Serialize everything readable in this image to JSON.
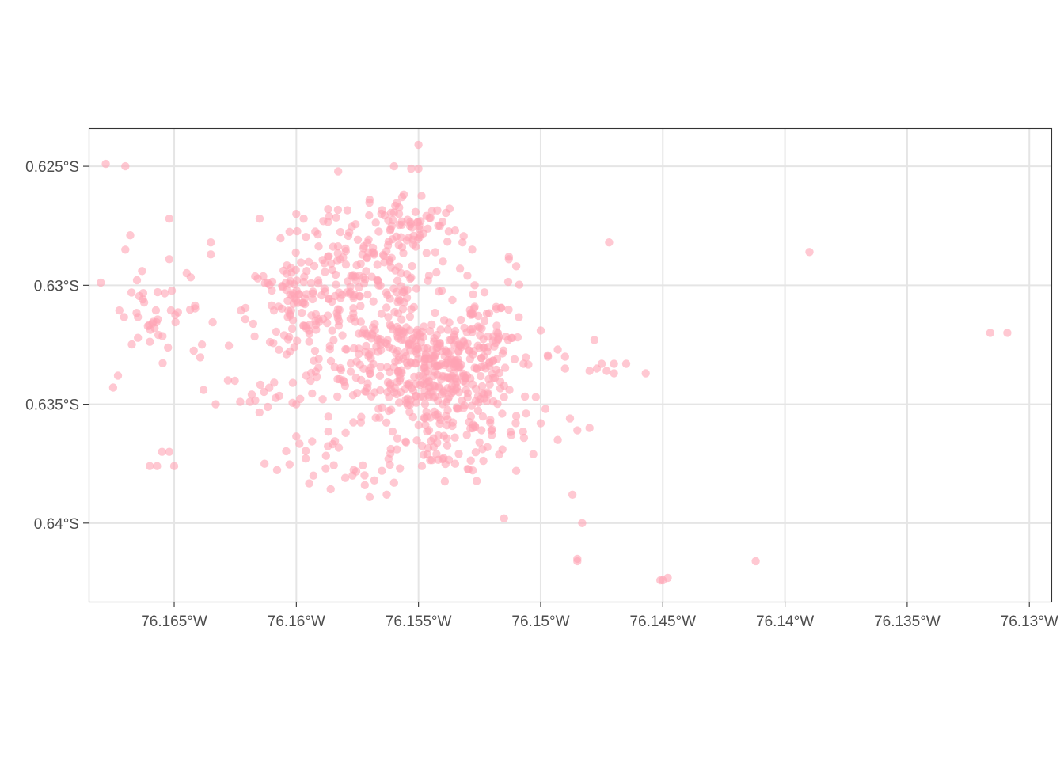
{
  "chart_data": {
    "type": "scatter",
    "title": "",
    "xlabel": "",
    "ylabel": "",
    "grid": true,
    "legend": "none",
    "point_color": "#ffa4b4",
    "point_opacity": 0.6,
    "grid_color": "#e5e5e5",
    "axis_color": "#333333",
    "xlim": [
      -76.1685,
      -76.1291
    ],
    "ylim": [
      -0.6433,
      -0.6234
    ],
    "x_ticks": [
      -76.165,
      -76.16,
      -76.155,
      -76.15,
      -76.145,
      -76.14,
      -76.135,
      -76.13
    ],
    "x_tick_labels": [
      "76.165°W",
      "76.16°W",
      "76.155°W",
      "76.15°W",
      "76.145°W",
      "76.14°W",
      "76.135°W",
      "76.13°W"
    ],
    "y_ticks": [
      -0.625,
      -0.63,
      -0.635,
      -0.64
    ],
    "y_tick_labels": [
      "0.625°S",
      "0.63°S",
      "0.635°S",
      "0.64°S"
    ],
    "clusters": [
      {
        "cx": -76.1555,
        "cy": -0.633,
        "sx": 0.0018,
        "sy": 0.0012,
        "n": 260
      },
      {
        "cx": -76.1575,
        "cy": -0.6298,
        "sx": 0.0018,
        "sy": 0.0014,
        "n": 170
      },
      {
        "cx": -76.1535,
        "cy": -0.6335,
        "sx": 0.0012,
        "sy": 0.0007,
        "n": 130
      },
      {
        "cx": -76.16,
        "cy": -0.631,
        "sx": 0.001,
        "sy": 0.0012,
        "n": 80
      },
      {
        "cx": -76.1555,
        "cy": -0.6275,
        "sx": 0.0011,
        "sy": 0.0007,
        "n": 60
      },
      {
        "cx": -76.1545,
        "cy": -0.6365,
        "sx": 0.0016,
        "sy": 0.0009,
        "n": 80
      },
      {
        "cx": -76.1535,
        "cy": -0.635,
        "sx": 0.001,
        "sy": 0.0006,
        "n": 50
      },
      {
        "cx": -76.152,
        "cy": -0.632,
        "sx": 0.0008,
        "sy": 0.001,
        "n": 40
      },
      {
        "cx": -76.1655,
        "cy": -0.6315,
        "sx": 0.0012,
        "sy": 0.0011,
        "n": 45
      },
      {
        "cx": -76.159,
        "cy": -0.637,
        "sx": 0.0008,
        "sy": 0.0006,
        "n": 20
      },
      {
        "cx": -76.161,
        "cy": -0.6345,
        "sx": 0.0008,
        "sy": 0.0004,
        "n": 14
      }
    ],
    "points": [
      {
        "x": -76.1678,
        "y": -0.6249
      },
      {
        "x": -76.167,
        "y": -0.625
      },
      {
        "x": -76.1652,
        "y": -0.6272
      },
      {
        "x": -76.1668,
        "y": -0.6279
      },
      {
        "x": -76.167,
        "y": -0.6285
      },
      {
        "x": -76.1635,
        "y": -0.6282
      },
      {
        "x": -76.1635,
        "y": -0.6287
      },
      {
        "x": -76.1652,
        "y": -0.6289
      },
      {
        "x": -76.1628,
        "y": -0.634
      },
      {
        "x": -76.1638,
        "y": -0.6344
      },
      {
        "x": -76.1675,
        "y": -0.6343
      },
      {
        "x": -76.1673,
        "y": -0.6338
      },
      {
        "x": -76.1652,
        "y": -0.637
      },
      {
        "x": -76.1655,
        "y": -0.637
      },
      {
        "x": -76.1657,
        "y": -0.6376
      },
      {
        "x": -76.166,
        "y": -0.6376
      },
      {
        "x": -76.165,
        "y": -0.6376
      },
      {
        "x": -76.1619,
        "y": -0.6349
      },
      {
        "x": -76.1623,
        "y": -0.6349
      },
      {
        "x": -76.1633,
        "y": -0.635
      },
      {
        "x": -76.1613,
        "y": -0.6375
      },
      {
        "x": -76.155,
        "y": -0.6241
      },
      {
        "x": -76.1553,
        "y": -0.6251
      },
      {
        "x": -76.155,
        "y": -0.6251
      },
      {
        "x": -76.156,
        "y": -0.625
      },
      {
        "x": -76.157,
        "y": -0.6264
      },
      {
        "x": -76.1558,
        "y": -0.627
      },
      {
        "x": -76.1587,
        "y": -0.6268
      },
      {
        "x": -76.16,
        "y": -0.627
      },
      {
        "x": -76.1615,
        "y": -0.6272
      },
      {
        "x": -76.1597,
        "y": -0.6272
      },
      {
        "x": -76.1582,
        "y": -0.6289
      },
      {
        "x": -76.1605,
        "y": -0.6321
      },
      {
        "x": -76.1604,
        "y": -0.6329
      },
      {
        "x": -76.1596,
        "y": -0.6338
      },
      {
        "x": -76.16,
        "y": -0.635
      },
      {
        "x": -76.1593,
        "y": -0.638
      },
      {
        "x": -76.1588,
        "y": -0.6377
      },
      {
        "x": -76.158,
        "y": -0.6381
      },
      {
        "x": -76.1577,
        "y": -0.638
      },
      {
        "x": -76.1572,
        "y": -0.6384
      },
      {
        "x": -76.1565,
        "y": -0.6378
      },
      {
        "x": -76.1563,
        "y": -0.6388
      },
      {
        "x": -76.157,
        "y": -0.6389
      },
      {
        "x": -76.156,
        "y": -0.6383
      },
      {
        "x": -76.1535,
        "y": -0.6375
      },
      {
        "x": -76.1515,
        "y": -0.6347
      },
      {
        "x": -76.151,
        "y": -0.6355
      },
      {
        "x": -76.1512,
        "y": -0.6363
      },
      {
        "x": -76.152,
        "y": -0.6363
      },
      {
        "x": -76.1502,
        "y": -0.6347
      },
      {
        "x": -76.15,
        "y": -0.6358
      },
      {
        "x": -76.1498,
        "y": -0.6352
      },
      {
        "x": -76.1503,
        "y": -0.6371
      },
      {
        "x": -76.151,
        "y": -0.6378
      },
      {
        "x": -76.1515,
        "y": -0.6398
      },
      {
        "x": -76.1488,
        "y": -0.6356
      },
      {
        "x": -76.1485,
        "y": -0.6361
      },
      {
        "x": -76.1493,
        "y": -0.6365
      },
      {
        "x": -76.148,
        "y": -0.636
      },
      {
        "x": -76.1497,
        "y": -0.633
      },
      {
        "x": -76.1493,
        "y": -0.6327
      },
      {
        "x": -76.1507,
        "y": -0.6333
      },
      {
        "x": -76.15,
        "y": -0.6319
      },
      {
        "x": -76.1518,
        "y": -0.6317
      },
      {
        "x": -76.1523,
        "y": -0.6315
      },
      {
        "x": -76.1527,
        "y": -0.6309
      },
      {
        "x": -76.1523,
        "y": -0.6303
      },
      {
        "x": -76.1527,
        "y": -0.63
      },
      {
        "x": -76.153,
        "y": -0.6296
      },
      {
        "x": -76.154,
        "y": -0.629
      },
      {
        "x": -76.1532,
        "y": -0.6282
      },
      {
        "x": -76.1535,
        "y": -0.6277
      },
      {
        "x": -76.1528,
        "y": -0.6285
      },
      {
        "x": -76.1533,
        "y": -0.6293
      },
      {
        "x": -76.1513,
        "y": -0.6289
      },
      {
        "x": -76.151,
        "y": -0.6292
      },
      {
        "x": -76.1513,
        "y": -0.6288
      },
      {
        "x": -76.1478,
        "y": -0.6323
      },
      {
        "x": -76.147,
        "y": -0.6337
      },
      {
        "x": -76.1473,
        "y": -0.6336
      },
      {
        "x": -76.1477,
        "y": -0.6335
      },
      {
        "x": -76.148,
        "y": -0.6336
      },
      {
        "x": -76.1475,
        "y": -0.6333
      },
      {
        "x": -76.147,
        "y": -0.6333
      },
      {
        "x": -76.1465,
        "y": -0.6333
      },
      {
        "x": -76.149,
        "y": -0.633
      },
      {
        "x": -76.149,
        "y": -0.6335
      },
      {
        "x": -76.1472,
        "y": -0.6282
      },
      {
        "x": -76.1457,
        "y": -0.6337
      },
      {
        "x": -76.139,
        "y": -0.6286
      },
      {
        "x": -76.1316,
        "y": -0.632
      },
      {
        "x": -76.1309,
        "y": -0.632
      },
      {
        "x": -76.1487,
        "y": -0.6388
      },
      {
        "x": -76.1483,
        "y": -0.64
      },
      {
        "x": -76.1485,
        "y": -0.6415
      },
      {
        "x": -76.1485,
        "y": -0.6416
      },
      {
        "x": -76.1451,
        "y": -0.6424
      },
      {
        "x": -76.145,
        "y": -0.6424
      },
      {
        "x": -76.1448,
        "y": -0.6423
      },
      {
        "x": -76.1412,
        "y": -0.6416
      }
    ]
  }
}
